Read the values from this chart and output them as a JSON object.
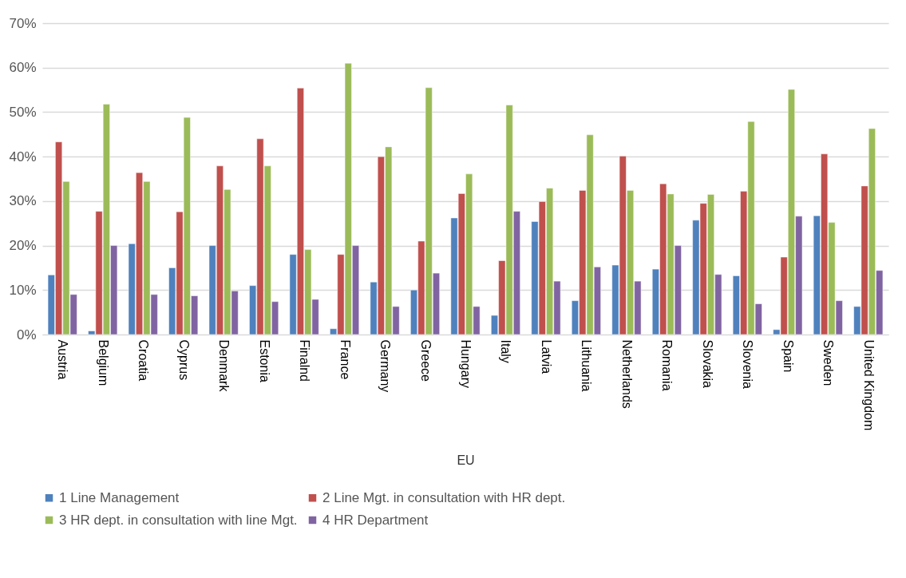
{
  "chart_data": {
    "type": "bar",
    "xlabel": "EU",
    "categories": [
      "Austria",
      "Belgium",
      "Croatia",
      "Cyprus",
      "Denmark",
      "Estonia",
      "Finalnd",
      "France",
      "Germany",
      "Greece",
      "Hungary",
      "Italy",
      "Latvia",
      "Lithuania",
      "Netherlands",
      "Romania",
      "Slovakia",
      "Slovenia",
      "Spain",
      "Sweden",
      "United Kingdom"
    ],
    "series": [
      {
        "name": "1 Line Management",
        "color": "#4f81bd",
        "values": [
          13.4,
          0.8,
          20.4,
          15.0,
          20.0,
          11.0,
          18.0,
          1.3,
          11.8,
          10.0,
          26.2,
          4.3,
          25.4,
          7.6,
          15.6,
          14.7,
          25.7,
          13.2,
          1.1,
          26.7,
          6.3
        ]
      },
      {
        "name": "2 Line Mgt. in consultation with HR dept.",
        "color": "#c0504d",
        "values": [
          43.3,
          27.7,
          36.4,
          27.6,
          37.9,
          44.0,
          55.4,
          18.0,
          40.0,
          21.0,
          31.7,
          16.6,
          29.9,
          32.4,
          40.1,
          33.9,
          29.5,
          32.2,
          17.4,
          40.6,
          33.4
        ]
      },
      {
        "name": "3 HR dept. in consultation with line Mgt.",
        "color": "#9bbb59",
        "values": [
          34.4,
          51.8,
          34.4,
          48.8,
          32.6,
          37.9,
          19.1,
          61.0,
          42.2,
          55.5,
          36.1,
          51.6,
          32.9,
          44.9,
          32.4,
          31.6,
          31.5,
          47.9,
          55.1,
          25.2,
          46.3
        ]
      },
      {
        "name": "4 HR  Department",
        "color": "#8064a2",
        "values": [
          9.0,
          20.0,
          9.0,
          8.7,
          9.8,
          7.4,
          7.9,
          20.0,
          6.3,
          13.8,
          6.3,
          27.7,
          12.0,
          15.2,
          12.0,
          20.0,
          13.5,
          6.9,
          26.6,
          7.6,
          14.4
        ]
      }
    ],
    "ylim": [
      0,
      70
    ],
    "yticks": [
      {
        "value": 0,
        "label": "0%"
      },
      {
        "value": 10,
        "label": "10%"
      },
      {
        "value": 20,
        "label": "20%"
      },
      {
        "value": 30,
        "label": "30%"
      },
      {
        "value": 40,
        "label": "40%"
      },
      {
        "value": 50,
        "label": "50%"
      },
      {
        "value": 60,
        "label": "60%"
      },
      {
        "value": 70,
        "label": "70%"
      }
    ],
    "grid": "y",
    "legend": "bottom"
  }
}
